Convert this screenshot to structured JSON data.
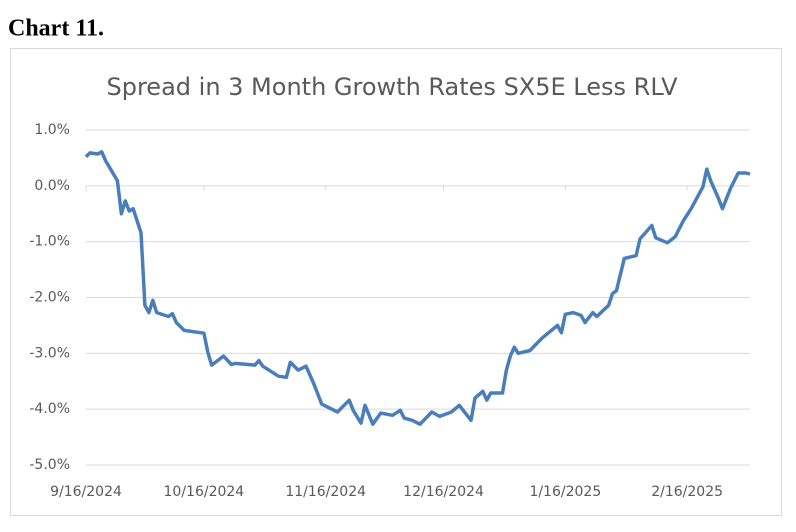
{
  "heading": "Chart 11.",
  "chart_data": {
    "type": "line",
    "title": "Spread in 3 Month Growth Rates SX5E Less RLV",
    "x": [
      "9/16/2024",
      "9/17/2024",
      "9/19/2024",
      "9/20/2024",
      "9/21/2024",
      "9/24/2024",
      "9/25/2024",
      "9/26/2024",
      "9/27/2024",
      "9/28/2024",
      "9/30/2024",
      "10/1/2024",
      "10/2/2024",
      "10/3/2024",
      "10/4/2024",
      "10/7/2024",
      "10/8/2024",
      "10/9/2024",
      "10/11/2024",
      "10/16/2024",
      "10/17/2024",
      "10/18/2024",
      "10/21/2024",
      "10/23/2024",
      "10/24/2024",
      "10/29/2024",
      "10/30/2024",
      "10/31/2024",
      "11/4/2024",
      "11/6/2024",
      "11/7/2024",
      "11/9/2024",
      "11/11/2024",
      "11/13/2024",
      "11/15/2024",
      "11/19/2024",
      "11/22/2024",
      "11/23/2024",
      "11/25/2024",
      "11/26/2024",
      "11/28/2024",
      "11/30/2024",
      "12/3/2024",
      "12/5/2024",
      "12/6/2024",
      "12/8/2024",
      "12/10/2024",
      "12/13/2024",
      "12/15/2024",
      "12/18/2024",
      "12/20/2024",
      "12/23/2024",
      "12/24/2024",
      "12/26/2024",
      "12/27/2024",
      "12/28/2024",
      "12/31/2024",
      "1/1/2025",
      "1/2/2025",
      "1/3/2025",
      "1/4/2025",
      "1/7/2025",
      "1/10/2025",
      "1/14/2025",
      "1/15/2025",
      "1/16/2025",
      "1/18/2025",
      "1/20/2025",
      "1/21/2025",
      "1/23/2025",
      "1/24/2025",
      "1/27/2025",
      "1/28/2025",
      "1/29/2025",
      "1/31/2025",
      "2/3/2025",
      "2/4/2025",
      "2/7/2025",
      "2/8/2025",
      "2/11/2025",
      "2/13/2025",
      "2/15/2025",
      "2/17/2025",
      "2/20/2025",
      "2/21/2025",
      "2/22/2025",
      "2/24/2025",
      "2/25/2025",
      "2/27/2025",
      "3/1/2025",
      "3/3/2025",
      "3/4/2025"
    ],
    "series": [
      {
        "color": "#4a7ebb",
        "values": [
          0.52,
          0.59,
          0.57,
          0.61,
          0.45,
          0.09,
          -0.5,
          -0.27,
          -0.45,
          -0.41,
          -0.84,
          -2.14,
          -2.27,
          -2.05,
          -2.27,
          -2.34,
          -2.29,
          -2.45,
          -2.59,
          -2.64,
          -2.98,
          -3.21,
          -3.05,
          -3.2,
          -3.18,
          -3.21,
          -3.13,
          -3.23,
          -3.41,
          -3.43,
          -3.16,
          -3.3,
          -3.23,
          -3.55,
          -3.91,
          -4.05,
          -3.84,
          -4.02,
          -4.25,
          -3.93,
          -4.27,
          -4.07,
          -4.11,
          -4.02,
          -4.16,
          -4.2,
          -4.27,
          -4.05,
          -4.13,
          -4.05,
          -3.93,
          -4.2,
          -3.8,
          -3.68,
          -3.84,
          -3.71,
          -3.71,
          -3.3,
          -3.05,
          -2.89,
          -3.0,
          -2.95,
          -2.73,
          -2.5,
          -2.63,
          -2.3,
          -2.27,
          -2.32,
          -2.45,
          -2.27,
          -2.34,
          -2.14,
          -1.93,
          -1.88,
          -1.3,
          -1.25,
          -0.95,
          -0.71,
          -0.93,
          -1.02,
          -0.91,
          -0.63,
          -0.41,
          -0.02,
          0.3,
          0.09,
          -0.23,
          -0.41,
          -0.05,
          0.23,
          0.23,
          0.21
        ]
      }
    ],
    "xlim": [
      "9/16/2024",
      "3/4/2025"
    ],
    "xticks": [
      "9/16/2024",
      "10/16/2024",
      "11/16/2024",
      "12/16/2024",
      "1/16/2025",
      "2/16/2025"
    ],
    "ylim": [
      -5,
      1
    ],
    "yticks": [
      {
        "value": 1,
        "label": "1.0%"
      },
      {
        "value": 0,
        "label": "0.0%"
      },
      {
        "value": -1,
        "label": "-1.0%"
      },
      {
        "value": -2,
        "label": "-2.0%"
      },
      {
        "value": -3,
        "label": "-3.0%"
      },
      {
        "value": -4,
        "label": "-4.0%"
      },
      {
        "value": -5,
        "label": "-5.0%"
      }
    ],
    "grid": true
  }
}
